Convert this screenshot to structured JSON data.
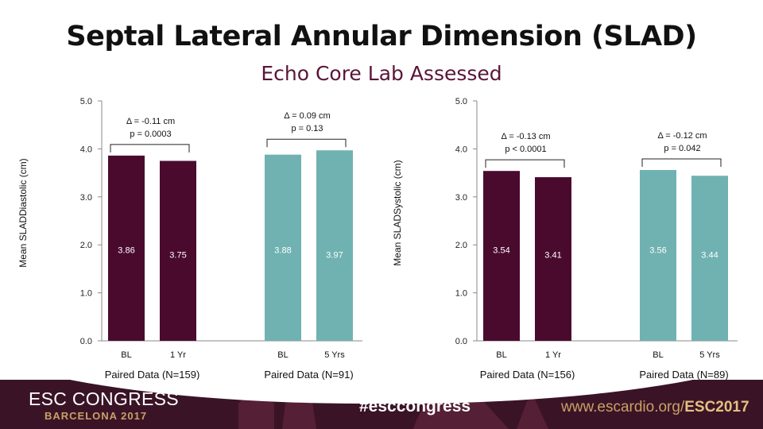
{
  "slide": {
    "title": "Septal Lateral Annular Dimension (SLAD)",
    "subtitle": "Echo Core Lab Assessed"
  },
  "chart_data": [
    {
      "type": "bar",
      "ylabel": "Mean SLADDiastolic (cm)",
      "ylim": [
        0,
        5
      ],
      "yticks": [
        "0.0",
        "1.0",
        "2.0",
        "3.0",
        "4.0",
        "5.0"
      ],
      "groups": [
        {
          "label": "Paired Data (N=159)",
          "color": "#4a0a2e",
          "categories": [
            "BL",
            "1 Yr"
          ],
          "values": [
            3.86,
            3.75
          ],
          "value_labels": [
            "3.86",
            "3.75"
          ],
          "annotation": [
            "Δ  = -0.11 cm",
            "p = 0.0003"
          ]
        },
        {
          "label": "Paired Data (N=91)",
          "color": "#6fb2b1",
          "categories": [
            "BL",
            "5 Yrs"
          ],
          "values": [
            3.88,
            3.97
          ],
          "value_labels": [
            "3.88",
            "3.97"
          ],
          "annotation": [
            "Δ  = 0.09 cm",
            "p = 0.13"
          ]
        }
      ]
    },
    {
      "type": "bar",
      "ylabel": "Mean SLADSystolic (cm)",
      "ylim": [
        0,
        5
      ],
      "yticks": [
        "0.0",
        "1.0",
        "2.0",
        "3.0",
        "4.0",
        "5.0"
      ],
      "groups": [
        {
          "label": "Paired Data (N=156)",
          "color": "#4a0a2e",
          "categories": [
            "BL",
            "1 Yr"
          ],
          "values": [
            3.54,
            3.41
          ],
          "value_labels": [
            "3.54",
            "3.41"
          ],
          "annotation": [
            "Δ  = -0.13 cm",
            "p < 0.0001"
          ]
        },
        {
          "label": "Paired Data (N=89)",
          "color": "#6fb2b1",
          "categories": [
            "BL",
            "5 Yrs"
          ],
          "values": [
            3.56,
            3.44
          ],
          "value_labels": [
            "3.56",
            "3.44"
          ],
          "annotation": [
            "Δ  = -0.12 cm",
            "p = 0.042"
          ]
        }
      ]
    }
  ],
  "highlight": {
    "arrow_color": "#6cc04a"
  },
  "footer": {
    "congress": "ESC CONGRESS",
    "congress_sub": "BARCELONA 2017",
    "hashtag": "#esccongress",
    "website_prefix": "www.escardio.org/",
    "website_suffix": "ESC2017"
  }
}
